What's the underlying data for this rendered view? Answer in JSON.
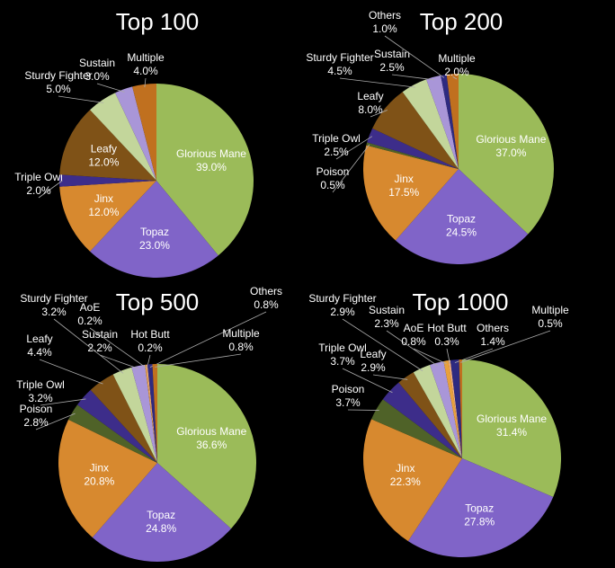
{
  "chart_data": [
    {
      "type": "pie",
      "title": "Top 100",
      "categories": [
        "Glorious Mane",
        "Topaz",
        "Jinx",
        "Triple Owl",
        "Leafy",
        "Sturdy Fighter",
        "Sustain",
        "Multiple"
      ],
      "values": [
        39.0,
        23.0,
        12.0,
        2.0,
        12.0,
        5.0,
        3.0,
        4.0
      ],
      "value_labels": [
        "39.0%",
        "23.0%",
        "12.0%",
        "2.0%",
        "12.0%",
        "5.0%",
        "3.0%",
        "4.0%"
      ],
      "colors": [
        "#9bbb59",
        "#8064c8",
        "#d7892f",
        "#3d2d8a",
        "#7f5217",
        "#c3d69b",
        "#a996d8",
        "#c0701f"
      ]
    },
    {
      "type": "pie",
      "title": "Top 200",
      "categories": [
        "Glorious Mane",
        "Topaz",
        "Jinx",
        "Poison",
        "Triple Owl",
        "Leafy",
        "Sturdy Fighter",
        "Sustain",
        "Others",
        "Multiple"
      ],
      "values": [
        37.0,
        24.5,
        17.5,
        0.5,
        2.5,
        8.0,
        4.5,
        2.5,
        1.0,
        2.0
      ],
      "value_labels": [
        "37.0%",
        "24.5%",
        "17.5%",
        "0.5%",
        "2.5%",
        "8.0%",
        "4.5%",
        "2.5%",
        "1.0%",
        "2.0%"
      ],
      "colors": [
        "#9bbb59",
        "#8064c8",
        "#d7892f",
        "#4f6228",
        "#3d2d8a",
        "#7f5217",
        "#c3d69b",
        "#a996d8",
        "#2e2a80",
        "#c0701f"
      ]
    },
    {
      "type": "pie",
      "title": "Top 500",
      "categories": [
        "Glorious Mane",
        "Topaz",
        "Jinx",
        "Poison",
        "Triple Owl",
        "Leafy",
        "Sturdy Fighter",
        "Sustain",
        "AoE",
        "Hot Butt",
        "Others",
        "Multiple"
      ],
      "values": [
        36.6,
        24.8,
        20.8,
        2.8,
        3.2,
        4.4,
        3.2,
        2.2,
        0.2,
        0.2,
        0.8,
        0.8
      ],
      "value_labels": [
        "36.6%",
        "24.8%",
        "20.8%",
        "2.8%",
        "3.2%",
        "4.4%",
        "3.2%",
        "2.2%",
        "0.2%",
        "0.2%",
        "0.8%",
        "0.8%"
      ],
      "colors": [
        "#9bbb59",
        "#8064c8",
        "#d7892f",
        "#4f6228",
        "#3d2d8a",
        "#7f5217",
        "#c3d69b",
        "#a996d8",
        "#e8a03c",
        "#f4b183",
        "#2e2a80",
        "#c0701f"
      ]
    },
    {
      "type": "pie",
      "title": "Top 1000",
      "categories": [
        "Glorious Mane",
        "Topaz",
        "Jinx",
        "Poison",
        "Triple Owl",
        "Leafy",
        "Sturdy Fighter",
        "Sustain",
        "AoE",
        "Hot Butt",
        "Others",
        "Multiple"
      ],
      "values": [
        31.4,
        27.8,
        22.3,
        3.7,
        3.7,
        2.9,
        2.9,
        2.3,
        0.8,
        0.3,
        1.4,
        0.5
      ],
      "value_labels": [
        "31.4%",
        "27.8%",
        "22.3%",
        "3.7%",
        "3.7%",
        "2.9%",
        "2.9%",
        "2.3%",
        "0.8%",
        "0.3%",
        "1.4%",
        "0.5%"
      ],
      "colors": [
        "#9bbb59",
        "#8064c8",
        "#d7892f",
        "#4f6228",
        "#3d2d8a",
        "#7f5217",
        "#c3d69b",
        "#a996d8",
        "#e8a03c",
        "#f4b183",
        "#2e2a80",
        "#c0701f"
      ]
    }
  ]
}
